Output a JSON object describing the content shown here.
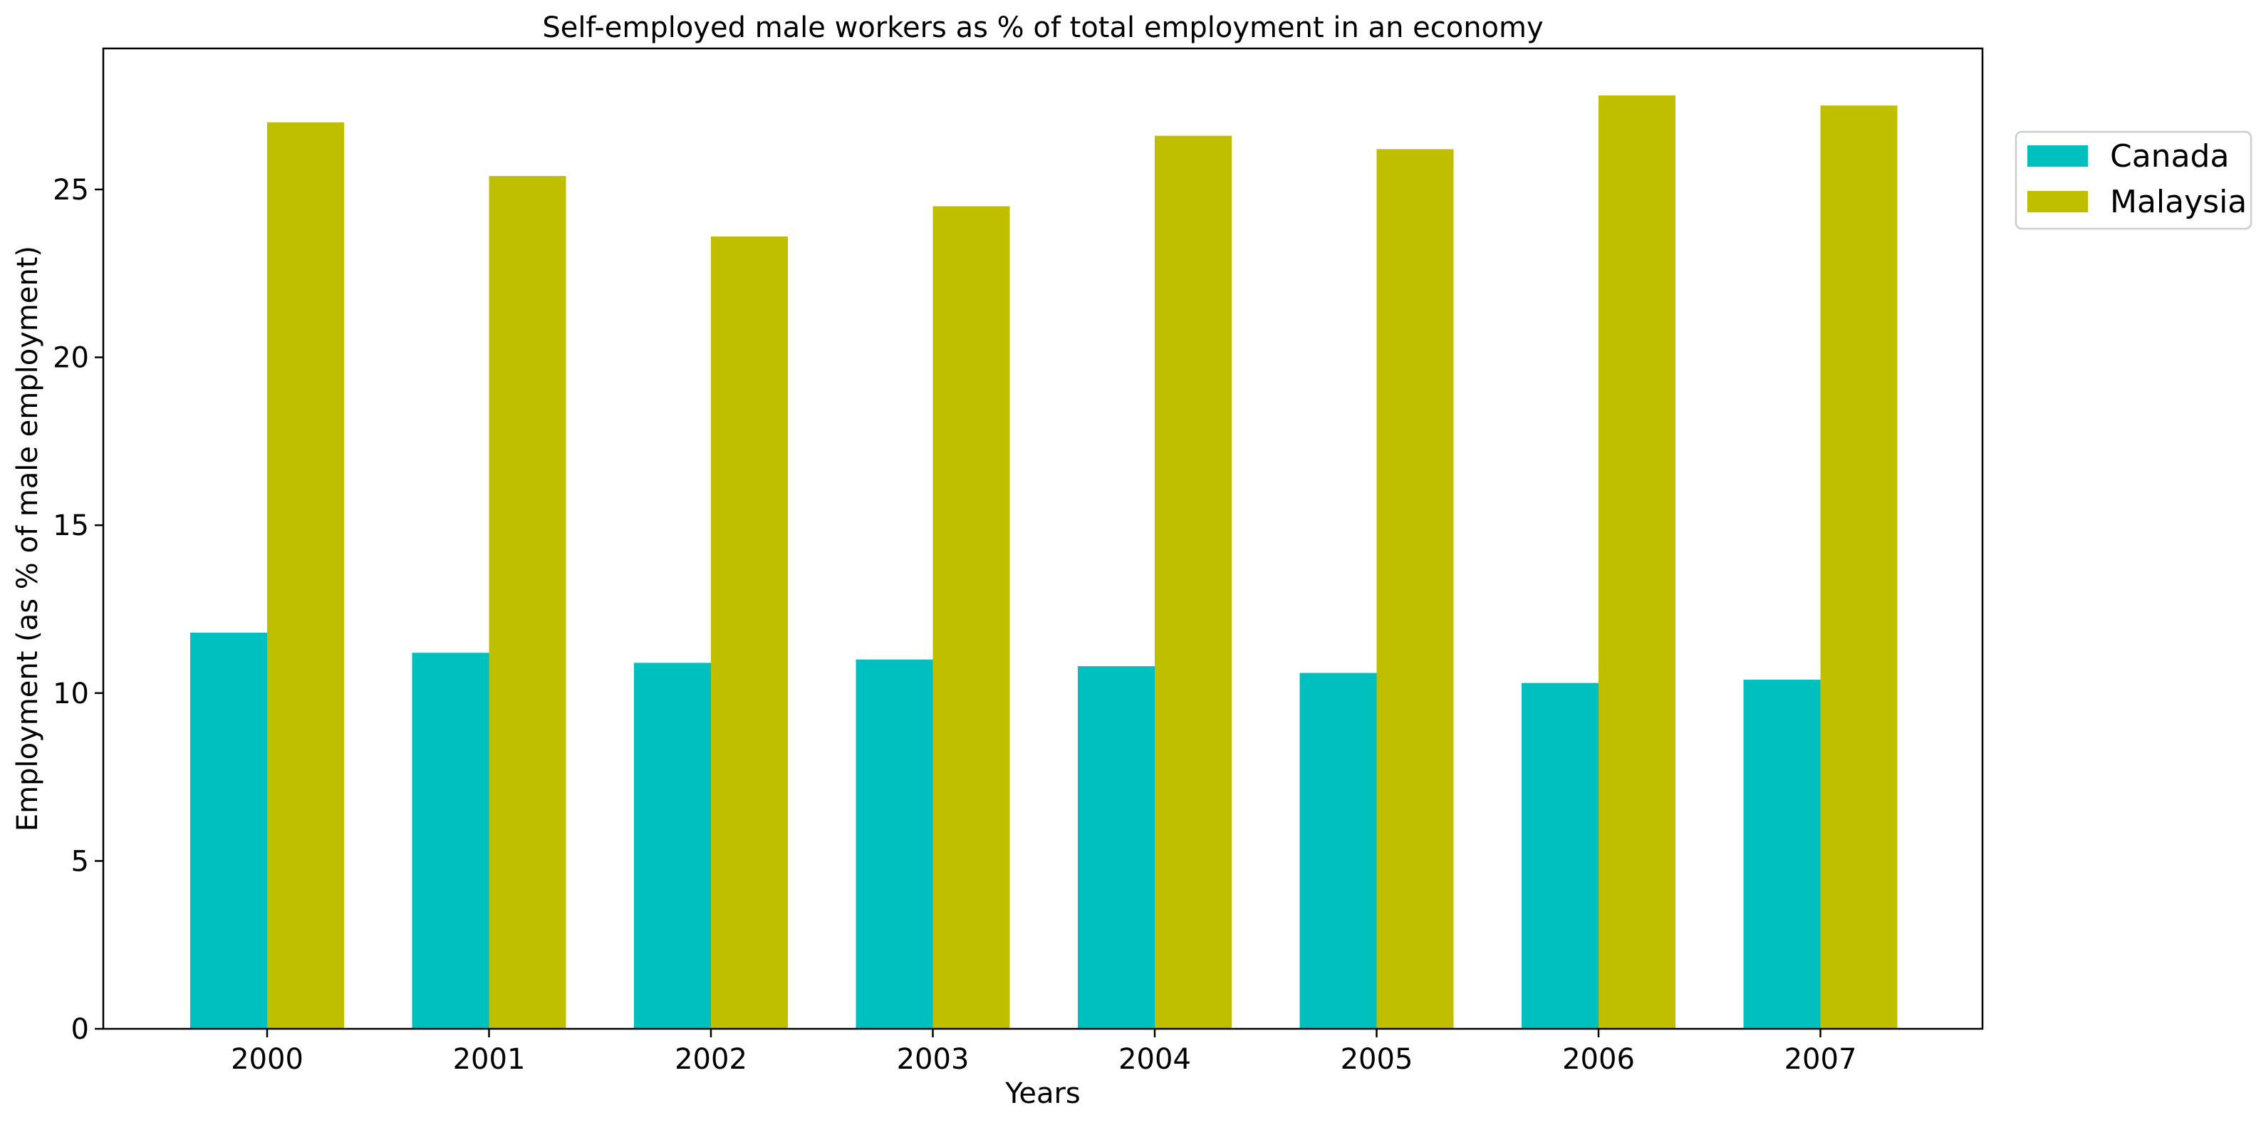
{
  "chart_data": {
    "type": "bar",
    "title": "Self-employed male workers as % of total employment in an economy",
    "xlabel": "Years",
    "ylabel": "Employment (as % of male employment)",
    "categories": [
      "2000",
      "2001",
      "2002",
      "2003",
      "2004",
      "2005",
      "2006",
      "2007"
    ],
    "series": [
      {
        "name": "Canada",
        "color": "#00bfbf",
        "values": [
          11.8,
          11.2,
          10.9,
          11.0,
          10.8,
          10.6,
          10.3,
          10.4
        ]
      },
      {
        "name": "Malaysia",
        "color": "#bfbf00",
        "values": [
          27.0,
          25.4,
          23.6,
          24.5,
          26.6,
          26.2,
          27.8,
          27.5
        ]
      }
    ],
    "yticks": [
      0,
      5,
      10,
      15,
      20,
      25
    ],
    "ylim": [
      0,
      29.2
    ],
    "grid": false,
    "legend_position": "right, upper (outside plot)"
  }
}
